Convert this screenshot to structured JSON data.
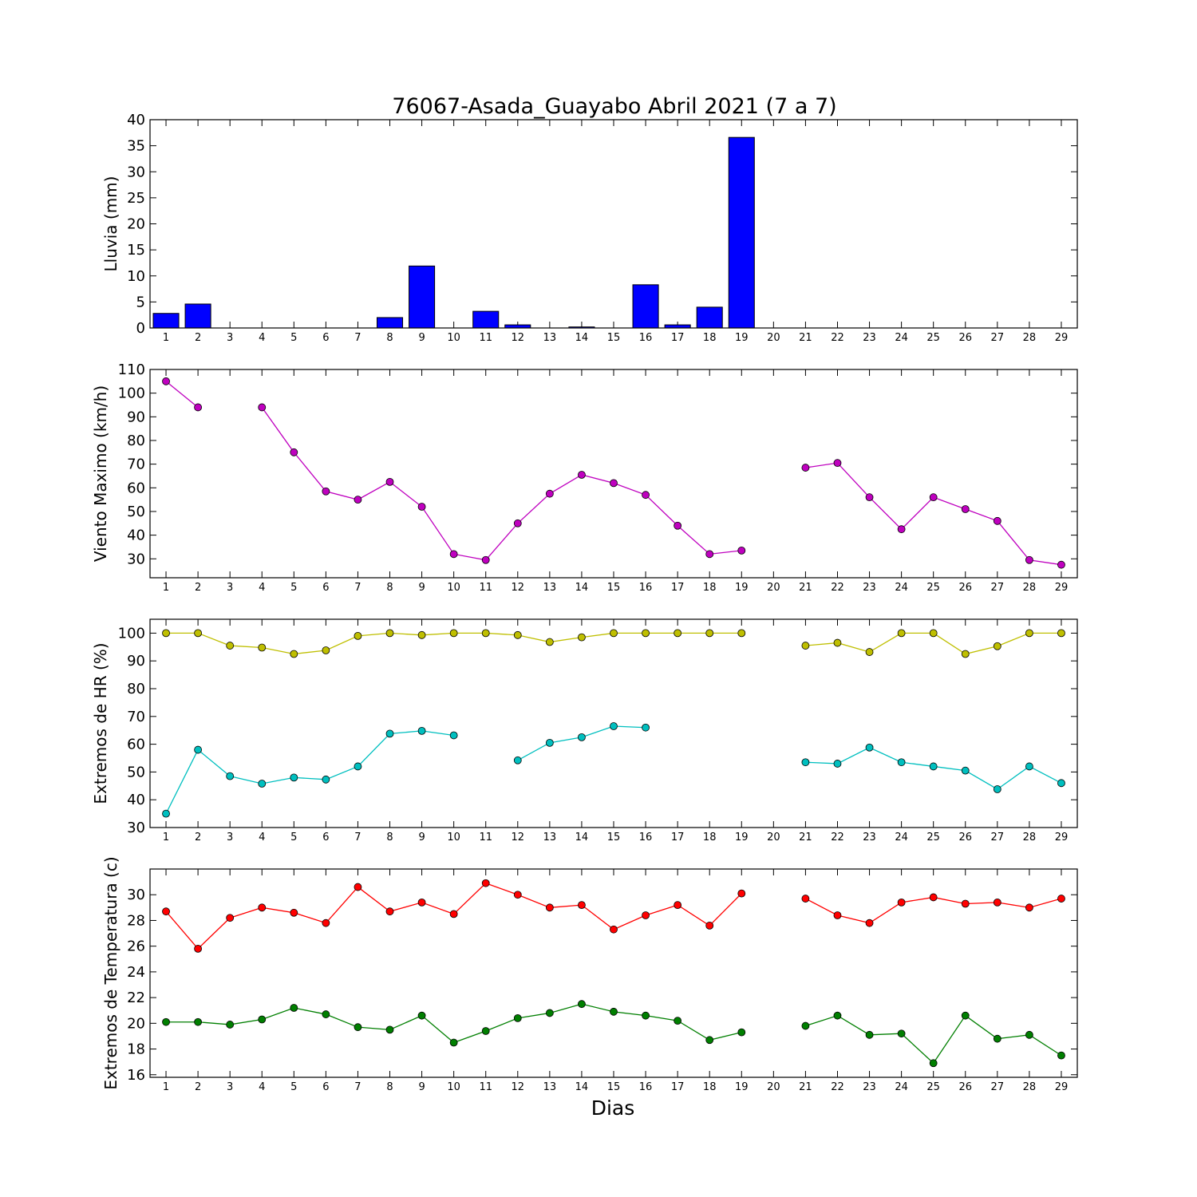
{
  "title": "76067-Asada_Guayabo Abril 2021  (7 a 7)",
  "xlabel": "Dias",
  "chart_data": [
    {
      "type": "bar",
      "ylabel": "Lluvia (mm)",
      "ylim": [
        0,
        40
      ],
      "yticks": [
        0,
        5,
        10,
        15,
        20,
        25,
        30,
        35,
        40
      ],
      "categories": [
        "1",
        "2",
        "3",
        "4",
        "5",
        "6",
        "7",
        "8",
        "9",
        "10",
        "11",
        "12",
        "13",
        "14",
        "15",
        "16",
        "17",
        "18",
        "19",
        "20",
        "21",
        "22",
        "23",
        "24",
        "25",
        "26",
        "27",
        "28",
        "29"
      ],
      "series": [
        {
          "color": "#0000ff",
          "values": [
            2.8,
            4.6,
            0,
            0,
            0,
            0,
            0,
            2.0,
            11.9,
            0,
            3.2,
            0.6,
            0,
            0.2,
            0,
            8.3,
            0.6,
            4.0,
            36.6,
            0,
            0,
            0,
            0,
            0,
            0,
            0,
            0,
            0,
            0
          ]
        }
      ]
    },
    {
      "type": "line",
      "ylabel": "Viento Maximo (km/h)",
      "ylim": [
        22,
        110
      ],
      "yticks": [
        30,
        40,
        50,
        60,
        70,
        80,
        90,
        100,
        110
      ],
      "x": [
        1,
        2,
        3,
        4,
        5,
        6,
        7,
        8,
        9,
        10,
        11,
        12,
        13,
        14,
        15,
        16,
        17,
        18,
        19,
        20,
        21,
        22,
        23,
        24,
        25,
        26,
        27,
        28,
        29
      ],
      "series": [
        {
          "color": "#bf00bf",
          "values": [
            105,
            94,
            null,
            94,
            75,
            58.5,
            55,
            62.5,
            52,
            32,
            29.5,
            45,
            57.5,
            65.5,
            62,
            57,
            44,
            32,
            33.5,
            null,
            68.5,
            70.5,
            56,
            42.5,
            56,
            51,
            46,
            29.5,
            27.5
          ]
        }
      ]
    },
    {
      "type": "line",
      "ylabel": "Extremos de HR (%)",
      "ylim": [
        30,
        105
      ],
      "yticks": [
        30,
        40,
        50,
        60,
        70,
        80,
        90,
        100
      ],
      "x": [
        1,
        2,
        3,
        4,
        5,
        6,
        7,
        8,
        9,
        10,
        11,
        12,
        13,
        14,
        15,
        16,
        17,
        18,
        19,
        20,
        21,
        22,
        23,
        24,
        25,
        26,
        27,
        28,
        29
      ],
      "series": [
        {
          "color": "#bfbf00",
          "values": [
            100,
            100,
            95.5,
            94.8,
            92.5,
            93.8,
            99,
            100,
            99.3,
            100,
            100,
            99.3,
            96.8,
            98.5,
            100,
            100,
            100,
            100,
            100,
            null,
            95.5,
            96.5,
            93.2,
            100,
            100,
            92.5,
            95.3,
            100,
            100
          ]
        },
        {
          "color": "#00bfbf",
          "values": [
            35,
            58,
            48.5,
            45.8,
            48,
            47.3,
            52,
            63.8,
            64.8,
            63.2,
            null,
            54.2,
            60.5,
            62.5,
            66.5,
            66,
            null,
            null,
            null,
            null,
            53.5,
            53,
            58.8,
            53.5,
            52,
            50.5,
            43.8,
            52,
            46
          ]
        }
      ]
    },
    {
      "type": "line",
      "ylabel": "Extremos de Temperatura (c)",
      "ylim": [
        15.8,
        32
      ],
      "yticks": [
        16,
        18,
        20,
        22,
        24,
        26,
        28,
        30
      ],
      "x": [
        1,
        2,
        3,
        4,
        5,
        6,
        7,
        8,
        9,
        10,
        11,
        12,
        13,
        14,
        15,
        16,
        17,
        18,
        19,
        20,
        21,
        22,
        23,
        24,
        25,
        26,
        27,
        28,
        29
      ],
      "series": [
        {
          "color": "#ff0000",
          "values": [
            28.7,
            25.8,
            28.2,
            29.0,
            28.6,
            27.8,
            30.6,
            28.7,
            29.4,
            28.5,
            30.9,
            30.0,
            29.0,
            29.2,
            27.3,
            28.4,
            29.2,
            27.6,
            30.1,
            null,
            29.7,
            28.4,
            27.8,
            29.4,
            29.8,
            29.3,
            29.4,
            29.0,
            29.7
          ]
        },
        {
          "color": "#007f00",
          "values": [
            20.1,
            20.1,
            19.9,
            20.3,
            21.2,
            20.7,
            19.7,
            19.5,
            20.6,
            18.5,
            19.4,
            20.4,
            20.8,
            21.5,
            20.9,
            20.6,
            20.2,
            18.7,
            19.3,
            null,
            19.8,
            20.6,
            19.1,
            19.2,
            16.9,
            20.6,
            18.8,
            19.1,
            17.5
          ]
        }
      ]
    }
  ]
}
